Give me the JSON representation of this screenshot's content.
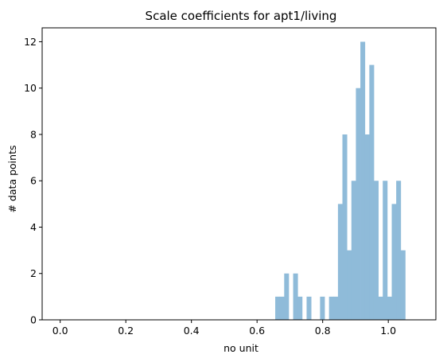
{
  "chart_data": {
    "type": "bar",
    "title": "Scale coefficients for apt1/living",
    "xlabel": "no unit",
    "ylabel": "# data points",
    "xlim": [
      -0.055,
      1.145
    ],
    "ylim": [
      0,
      12.6
    ],
    "xticks": [
      0.0,
      0.2,
      0.4,
      0.6,
      0.8,
      1.0
    ],
    "xtick_labels": [
      "0.0",
      "0.2",
      "0.4",
      "0.6",
      "0.8",
      "1.0"
    ],
    "yticks": [
      0,
      2,
      4,
      6,
      8,
      10,
      12
    ],
    "ytick_labels": [
      "0",
      "2",
      "4",
      "6",
      "8",
      "10",
      "12"
    ],
    "bar_color": "#8fbbd9",
    "bin_width": 0.01365,
    "bins": [
      {
        "x0": 0.6554,
        "count": 1
      },
      {
        "x0": 0.6691,
        "count": 1
      },
      {
        "x0": 0.6827,
        "count": 2
      },
      {
        "x0": 0.71,
        "count": 2
      },
      {
        "x0": 0.7237,
        "count": 1
      },
      {
        "x0": 0.751,
        "count": 1
      },
      {
        "x0": 0.792,
        "count": 1
      },
      {
        "x0": 0.8193,
        "count": 1
      },
      {
        "x0": 0.8329,
        "count": 1
      },
      {
        "x0": 0.8466,
        "count": 5
      },
      {
        "x0": 0.8602,
        "count": 8
      },
      {
        "x0": 0.8739,
        "count": 3
      },
      {
        "x0": 0.8875,
        "count": 6
      },
      {
        "x0": 0.9012,
        "count": 10
      },
      {
        "x0": 0.9149,
        "count": 12
      },
      {
        "x0": 0.9285,
        "count": 8
      },
      {
        "x0": 0.9422,
        "count": 11
      },
      {
        "x0": 0.9558,
        "count": 6
      },
      {
        "x0": 0.9695,
        "count": 1
      },
      {
        "x0": 0.9831,
        "count": 6
      },
      {
        "x0": 0.9968,
        "count": 1
      },
      {
        "x0": 1.0105,
        "count": 5
      },
      {
        "x0": 1.0241,
        "count": 6
      },
      {
        "x0": 1.0378,
        "count": 3
      }
    ]
  }
}
